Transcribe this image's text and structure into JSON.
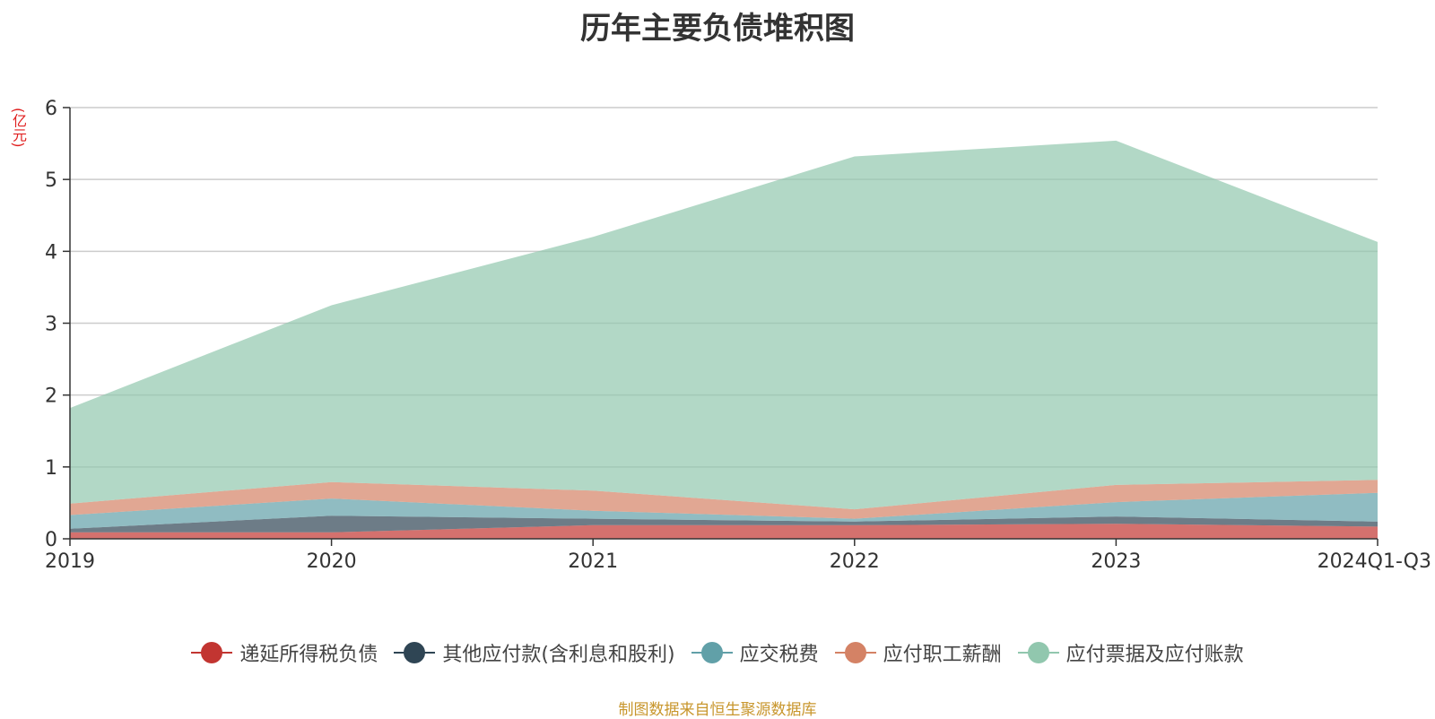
{
  "page": {
    "source": "制图数据来自恒生聚源数据库"
  },
  "chart_data": {
    "type": "area",
    "stacked": true,
    "title": "历年主要负债堆积图",
    "unit": "(亿元)",
    "xlabel": "",
    "ylabel": "",
    "categories": [
      "2019",
      "2020",
      "2021",
      "2022",
      "2023",
      "2024Q1-Q3"
    ],
    "ylim": [
      0,
      6
    ],
    "yticks": [
      0,
      1,
      2,
      3,
      4,
      5,
      6
    ],
    "grid": true,
    "legend_position": "bottom",
    "series": [
      {
        "name": "递延所得税负债",
        "color": "#c23531",
        "values": [
          0.09,
          0.09,
          0.19,
          0.19,
          0.21,
          0.17
        ]
      },
      {
        "name": "其他应付款(含利息和股利)",
        "color": "#2f4554",
        "values": [
          0.05,
          0.23,
          0.09,
          0.05,
          0.1,
          0.07
        ]
      },
      {
        "name": "应交税费",
        "color": "#61a0a8",
        "values": [
          0.19,
          0.24,
          0.11,
          0.04,
          0.2,
          0.4
        ]
      },
      {
        "name": "应付职工薪酬",
        "color": "#d48265",
        "values": [
          0.16,
          0.23,
          0.28,
          0.13,
          0.24,
          0.18
        ]
      },
      {
        "name": "应付票据及应付账款",
        "color": "#91c7ae",
        "values": [
          1.33,
          2.46,
          3.53,
          4.91,
          4.79,
          3.31
        ]
      }
    ]
  }
}
